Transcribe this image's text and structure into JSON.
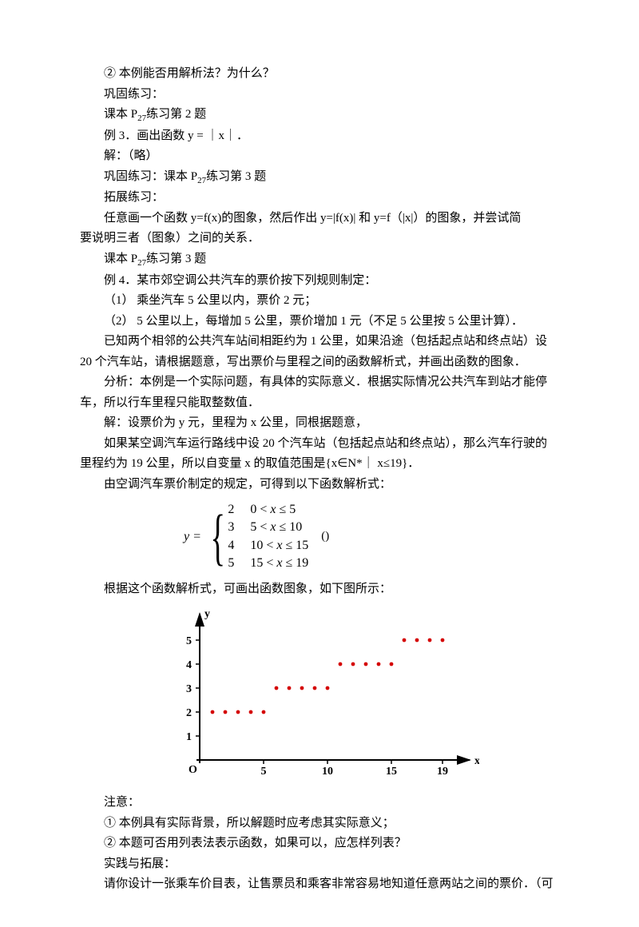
{
  "lines": {
    "l1": "② 本例能否用解析法？为什么？",
    "l2": "巩固练习：",
    "l3a": "课本 P",
    "l3s": "27",
    "l3b": "练习第 2 题",
    "l4": "例 3．画出函数 y = ｜x｜．",
    "l5": "解：（略）",
    "l6a": "巩固练习：课本 P",
    "l6s": "27",
    "l6b": "练习第 3 题",
    "l7": "拓展练习：",
    "l8": "任意画一个函数 y=f(x)的图象，然后作出 y=|f(x)| 和 y=f（|x|）的图象，并尝试简",
    "l9": "要说明三者（图象）之间的关系．",
    "l10a": "课本 P",
    "l10s": "27",
    "l10b": "练习第 3 题",
    "l11": "例 4．某市郊空调公共汽车的票价按下列规则制定：",
    "l12": "（1） 乘坐汽车 5 公里以内，票价 2 元；",
    "l13": "（2） 5 公里以上，每增加 5 公里，票价增加 1 元（不足 5 公里按 5 公里计算）．",
    "l14": "已知两个相邻的公共汽车站间相距约为 1 公里，如果沿途（包括起点站和终点站）设",
    "l15": "20 个汽车站，请根据题意，写出票价与里程之间的函数解析式，并画出函数的图象．",
    "l16": "分析：本例是一个实际问题，有具体的实际意义．根据实际情况公共汽车到站才能停",
    "l17": "车，所以行车里程只能取整数值．",
    "l18": "解：设票价为 y 元，里程为 x 公里，同根据题意，",
    "l19": "如果某空调汽车运行路线中设 20 个汽车站（包括起点站和终点站），那么汽车行驶的",
    "l20": "里程约为 19 公里，所以自变量 x 的取值范围是{x∈N*｜ x≤19}．",
    "l21": "由空调汽车票价制定的规定，可得到以下函数解析式：",
    "formula_y": "y =",
    "formula_paren": "()",
    "formula_rows": [
      {
        "v": "2",
        "c": "0 < x ≤ 5"
      },
      {
        "v": "3",
        "c": "5 < x ≤ 10"
      },
      {
        "v": "4",
        "c": "10 < x ≤ 15"
      },
      {
        "v": "5",
        "c": "15 < x ≤ 19"
      }
    ],
    "l22": "根据这个函数解析式，可画出函数图象，如下图所示：",
    "l23": "注意：",
    "l24": "① 本例具有实际背景，所以解题时应考虑其实际意义；",
    "l25": "② 本题可否用列表法表示函数，如果可以，应怎样列表？",
    "l26": "实践与拓展：",
    "l27": "请你设计一张乘车价目表，让售票员和乘客非常容易地知道任意两站之间的票价．（可"
  },
  "chart": {
    "axis_color": "#000000",
    "point_color": "#d40000",
    "tick_color": "#000000",
    "text_color": "#000000",
    "font_size": 14,
    "axis_weight": "bold",
    "x_label": "x",
    "y_label": "y",
    "origin_label": "O",
    "x_ticks": [
      5,
      10,
      15,
      19
    ],
    "y_ticks": [
      1,
      2,
      3,
      4,
      5
    ],
    "x_unit": 16,
    "y_unit": 30,
    "point_r": 2.4,
    "data": [
      {
        "y": 2,
        "xs": [
          1,
          2,
          3,
          4,
          5
        ]
      },
      {
        "y": 3,
        "xs": [
          6,
          7,
          8,
          9,
          10
        ]
      },
      {
        "y": 4,
        "xs": [
          11,
          12,
          13,
          14,
          15
        ]
      },
      {
        "y": 5,
        "xs": [
          16,
          17,
          18,
          19
        ]
      }
    ]
  }
}
